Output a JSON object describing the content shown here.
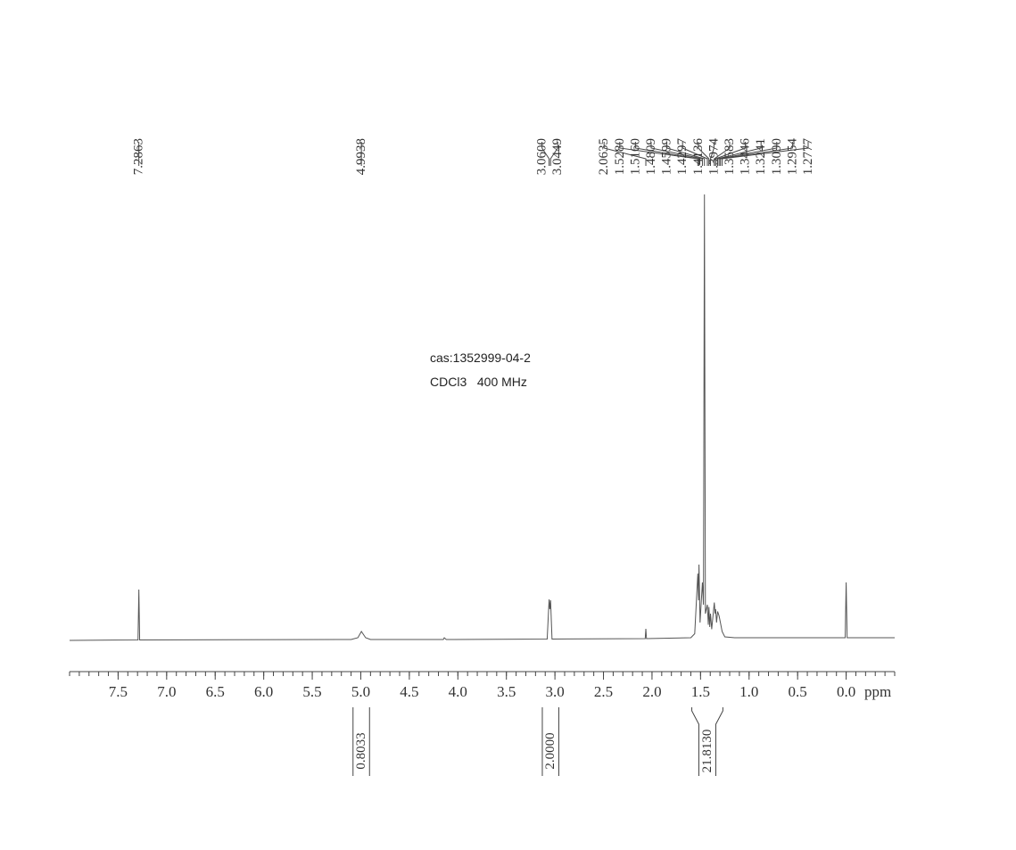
{
  "chart_data": {
    "type": "line",
    "x": [
      8.0,
      7.295,
      7.2863,
      7.278,
      5.1,
      5.03,
      4.9938,
      4.95,
      4.9,
      4.15,
      4.14,
      4.12,
      3.08,
      3.06,
      3.053,
      3.0449,
      3.03,
      2.07,
      2.0635,
      2.057,
      1.6,
      1.56,
      1.528,
      1.52,
      1.516,
      1.505,
      1.4809,
      1.47,
      1.4599,
      1.45,
      1.4297,
      1.42,
      1.4136,
      1.405,
      1.3974,
      1.385,
      1.3583,
      1.35,
      1.3446,
      1.335,
      1.3241,
      1.309,
      1.2954,
      1.2777,
      1.25,
      1.15,
      0.01,
      0.0,
      -0.01,
      -0.5
    ],
    "series": [
      {
        "color": "#555555",
        "values": [
          0,
          0.1,
          11.4,
          0.1,
          0.2,
          0.6,
          2,
          0.6,
          0.2,
          0.2,
          0.6,
          0.2,
          0.3,
          9.2,
          7,
          9,
          0.3,
          0.4,
          2.6,
          0.4,
          0.6,
          1.5,
          15,
          9,
          17,
          4,
          13,
          8,
          100,
          6,
          8,
          3.5,
          7.5,
          3,
          6,
          2.5,
          8.5,
          6,
          7,
          4,
          6.5,
          5.5,
          4,
          2,
          0.8,
          0.6,
          0.6,
          13,
          0.6,
          0.6
        ]
      }
    ],
    "xlim": [
      8.0,
      -0.5
    ],
    "ylim": [
      0,
      100
    ],
    "xticks": [
      7.5,
      {
        "value": 7,
        "label": "7.0"
      },
      6.5,
      {
        "value": 6,
        "label": "6.0"
      },
      5.5,
      {
        "value": 5,
        "label": "5.0"
      },
      4.5,
      {
        "value": 4,
        "label": "4.0"
      },
      3.5,
      {
        "value": 3,
        "label": "3.0"
      },
      2.5,
      {
        "value": 2,
        "label": "2.0"
      },
      1.5,
      {
        "value": 1,
        "label": "1.0"
      },
      0.5,
      {
        "value": 0,
        "label": "0.0"
      }
    ],
    "xlabel": "ppm",
    "annotations": [
      "cas:1352999-04-2",
      "CDCl3   400 MHz"
    ],
    "peak_labels": [
      7.2863,
      4.9938,
      {
        "value": 3.06,
        "label": "3.0600"
      },
      3.0449,
      2.0635,
      {
        "value": 1.528,
        "label": "1.5280"
      },
      {
        "value": 1.516,
        "label": "1.5160"
      },
      1.4809,
      1.4599,
      1.4297,
      1.4136,
      1.3974,
      1.3583,
      1.3446,
      1.3241,
      {
        "value": 1.309,
        "label": "1.3090"
      },
      1.2954,
      1.2777
    ],
    "integrals": [
      {
        "from": 5.08,
        "to": 4.91,
        "value": 0.8033
      },
      {
        "from": 3.13,
        "to": 2.96,
        "value": {
          "value": 2,
          "label": "2.0000"
        }
      },
      {
        "from": 1.59,
        "to": 1.27,
        "value": {
          "value": 21.813,
          "label": "21.8130"
        }
      }
    ]
  }
}
